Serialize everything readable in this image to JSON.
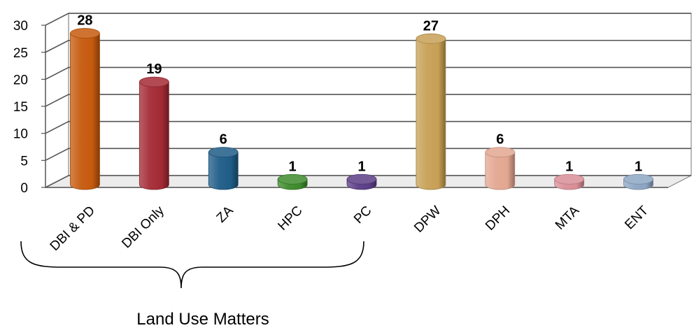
{
  "chart_data": {
    "type": "bar",
    "style": "3d-cylinder",
    "categories": [
      "DBI & PD",
      "DBI Only",
      "ZA",
      "HPC",
      "PC",
      "DPW",
      "DPH",
      "MTA",
      "ENT"
    ],
    "values": [
      28,
      19,
      6,
      1,
      1,
      27,
      6,
      1,
      1
    ],
    "data_labels": [
      "28",
      "19",
      "6",
      "1",
      "1",
      "27",
      "6",
      "1",
      "1"
    ],
    "colors": [
      "#C55A0E",
      "#A32A35",
      "#1F5C87",
      "#3D8A2C",
      "#5B3E86",
      "#C7A055",
      "#E3A791",
      "#D98E97",
      "#8DA5C3"
    ],
    "ylim": [
      0,
      30
    ],
    "yticks": [
      "0",
      "5",
      "10",
      "15",
      "20",
      "25",
      "30"
    ],
    "grid": true,
    "title": "",
    "xlabel": "",
    "ylabel": "",
    "annotation": {
      "text": "Land Use Matters",
      "spans": [
        "DBI & PD",
        "DBI Only",
        "ZA",
        "HPC",
        "PC"
      ]
    }
  }
}
